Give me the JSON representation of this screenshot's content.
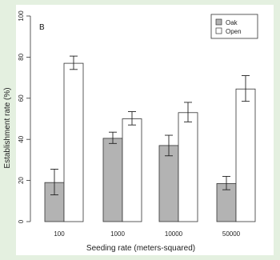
{
  "chart_data": {
    "type": "bar",
    "panel_label": "B",
    "title": "",
    "xlabel": "Seeding rate (meters-squared)",
    "ylabel": "Establishment rate (%)",
    "categories": [
      "100",
      "1000",
      "10000",
      "50000"
    ],
    "ylim": [
      0,
      100
    ],
    "yticks": [
      0,
      20,
      40,
      60,
      80,
      100
    ],
    "legend_position": "top-right",
    "grid": false,
    "series": [
      {
        "name": "Oak",
        "color": "#b3b3b3",
        "values": [
          19,
          40.5,
          37,
          18.5
        ],
        "error_low": [
          13,
          38,
          32,
          15.5
        ],
        "error_high": [
          25.5,
          43.5,
          42,
          22
        ]
      },
      {
        "name": "Open",
        "color": "#ffffff",
        "values": [
          77,
          50,
          53,
          64.5
        ],
        "error_low": [
          74,
          47,
          48.5,
          58.5
        ],
        "error_high": [
          80.5,
          53.5,
          58,
          71
        ]
      }
    ]
  }
}
